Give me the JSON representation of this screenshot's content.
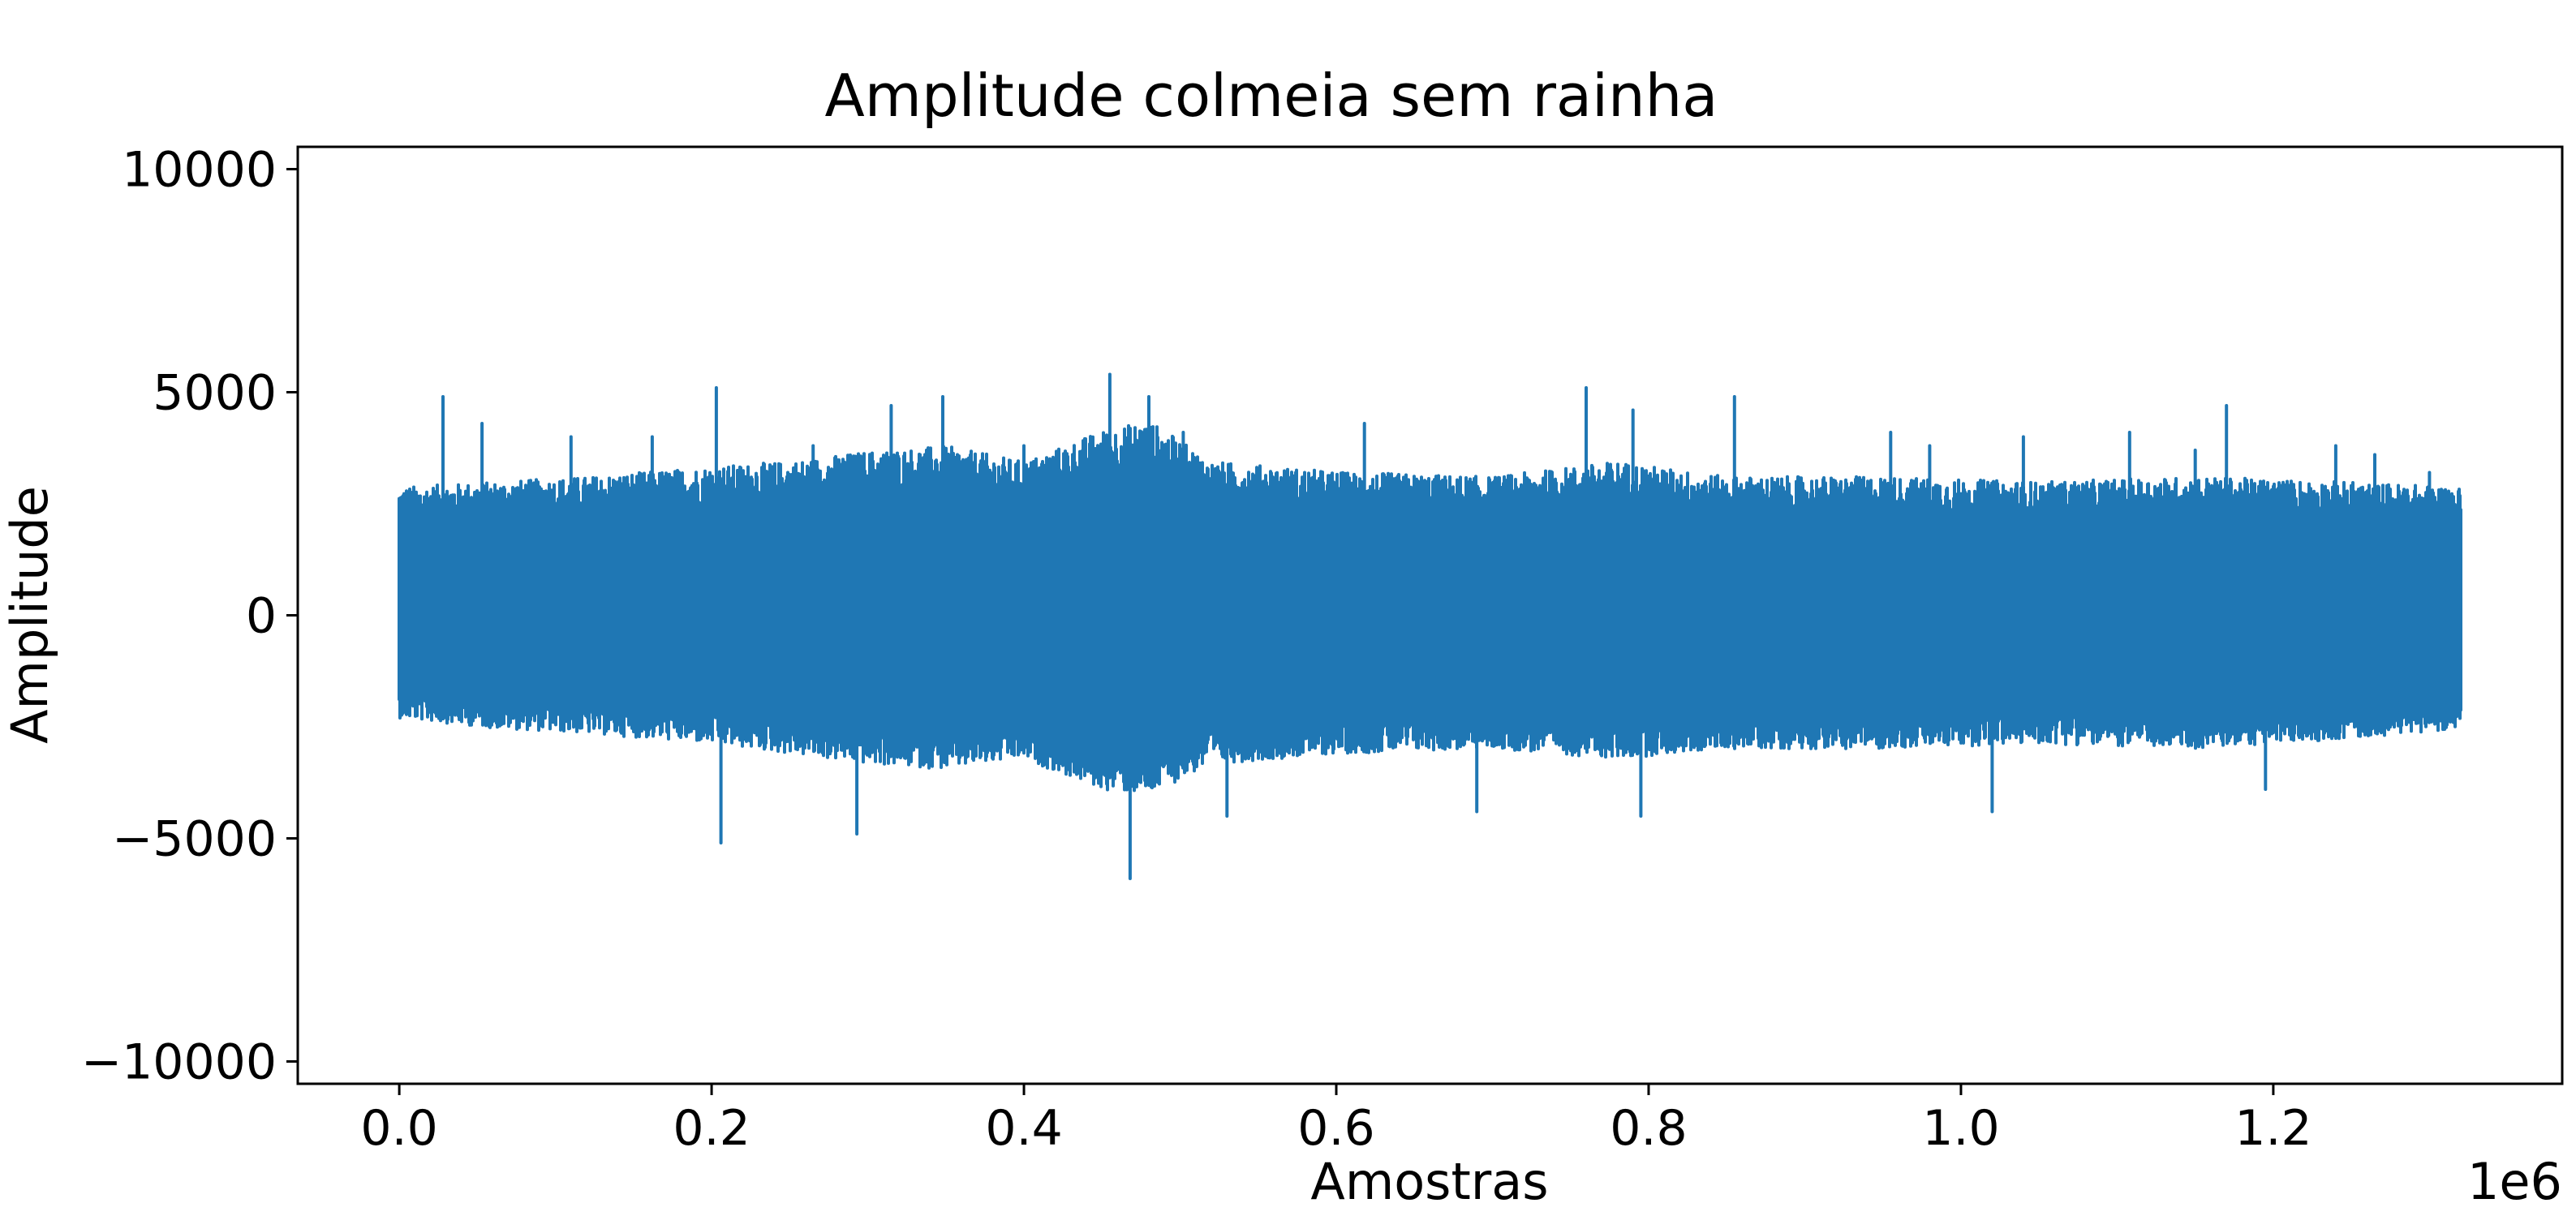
{
  "chart_data": {
    "type": "line",
    "title": "Amplitude colmeia sem rainha",
    "xlabel": "Amostras",
    "ylabel": "Amplitude",
    "x_offset_label": "1e6",
    "xlim": [
      -65000,
      1385000
    ],
    "ylim": [
      -10500,
      10500
    ],
    "xticks": [
      0,
      200000,
      400000,
      600000,
      800000,
      1000000,
      1200000
    ],
    "xtick_labels": [
      "0.0",
      "0.2",
      "0.4",
      "0.6",
      "0.8",
      "1.0",
      "1.2"
    ],
    "yticks": [
      10000,
      5000,
      0,
      -5000,
      -10000
    ],
    "ytick_labels": [
      "10000",
      "5000",
      "0",
      "−5000",
      "−10000"
    ],
    "grid": false,
    "series": [
      {
        "color": "#1f77b4",
        "x_range": [
          0,
          1320000
        ],
        "envelope_x": [
          0,
          60000,
          120000,
          200000,
          250000,
          300000,
          350000,
          400000,
          450000,
          480000,
          520000,
          600000,
          700000,
          780000,
          850000,
          950000,
          1050000,
          1150000,
          1250000,
          1320000
        ],
        "envelope_max": [
          2500,
          2600,
          2700,
          2900,
          3000,
          3200,
          3300,
          3000,
          3600,
          3800,
          3000,
          2800,
          2700,
          3000,
          2700,
          2700,
          2600,
          2700,
          2600,
          2500
        ],
        "envelope_min": [
          -2000,
          -2200,
          -2300,
          -2500,
          -2700,
          -2900,
          -3000,
          -2800,
          -3400,
          -3500,
          -2900,
          -2700,
          -2600,
          -2800,
          -2600,
          -2600,
          -2500,
          -2600,
          -2400,
          -2200
        ],
        "peaks": [
          [
            28000,
            4900
          ],
          [
            53000,
            4300
          ],
          [
            110000,
            4000
          ],
          [
            162000,
            4000
          ],
          [
            203000,
            5100
          ],
          [
            206000,
            -5100
          ],
          [
            265000,
            3800
          ],
          [
            293000,
            -4900
          ],
          [
            315000,
            4700
          ],
          [
            348000,
            4900
          ],
          [
            400000,
            3800
          ],
          [
            455000,
            5400
          ],
          [
            468000,
            -5900
          ],
          [
            480000,
            4900
          ],
          [
            502000,
            4100
          ],
          [
            530000,
            -4500
          ],
          [
            618000,
            4300
          ],
          [
            690000,
            -4400
          ],
          [
            760000,
            5100
          ],
          [
            790000,
            4600
          ],
          [
            795000,
            -4500
          ],
          [
            855000,
            4900
          ],
          [
            955000,
            4100
          ],
          [
            980000,
            3800
          ],
          [
            1020000,
            -4400
          ],
          [
            1040000,
            4000
          ],
          [
            1108000,
            4100
          ],
          [
            1150000,
            3700
          ],
          [
            1170000,
            4700
          ],
          [
            1195000,
            -3900
          ],
          [
            1240000,
            3800
          ],
          [
            1265000,
            3600
          ],
          [
            1300000,
            3200
          ]
        ]
      }
    ]
  }
}
